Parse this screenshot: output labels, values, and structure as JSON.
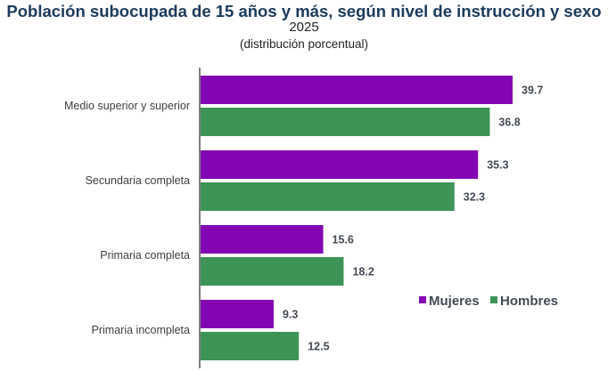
{
  "chart_data": {
    "type": "bar",
    "orientation": "horizontal",
    "title": "Población subocupada de 15 años y más, según nivel de instrucción y sexo",
    "subtitle": "2025",
    "subtitle2": "(distribución porcentual)",
    "xlabel": "",
    "ylabel": "",
    "xlim": [
      0,
      45
    ],
    "grid": false,
    "legend_position": "right",
    "categories": [
      "Medio superior y superior",
      "Secundaria completa",
      "Primaria completa",
      "Primaria incompleta"
    ],
    "series": [
      {
        "name": "Mujeres",
        "color": "#8306b3",
        "values": [
          39.7,
          35.3,
          15.6,
          9.3
        ]
      },
      {
        "name": "Hombres",
        "color": "#3d9456",
        "values": [
          36.8,
          32.3,
          18.2,
          12.5
        ]
      }
    ]
  }
}
